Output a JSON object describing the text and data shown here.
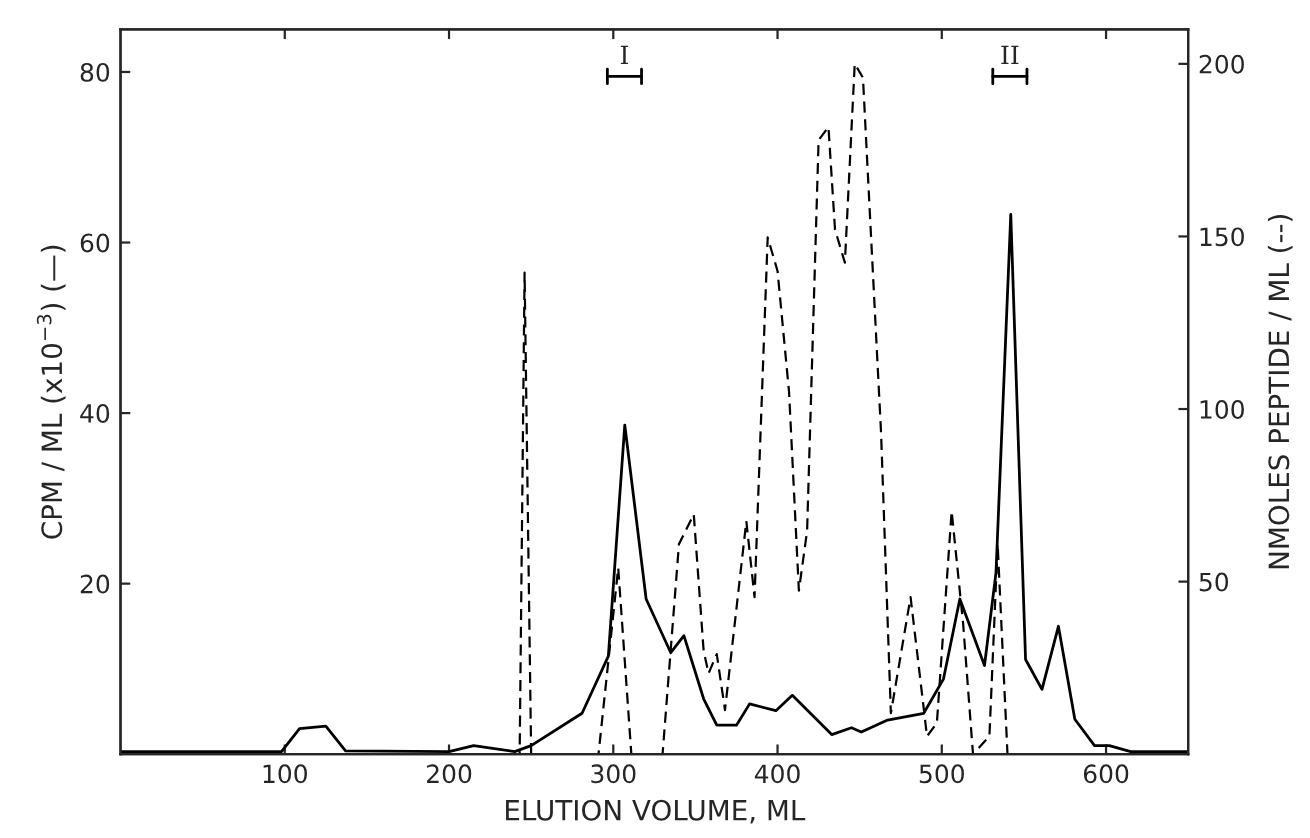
{
  "chart_data": {
    "type": "line",
    "xlabel": "ELUTION VOLUME, ML",
    "ylabel": "CPM / ML (x10$^{−3}$) (—)",
    "y2label": "NMOLES PEPTIDE / ML (--)",
    "xlim": [
      0,
      650
    ],
    "xticks": [
      100,
      200,
      300,
      400,
      500,
      600
    ],
    "ylim": [
      0,
      85
    ],
    "yticks": [
      20,
      40,
      60,
      80
    ],
    "y2lim": [
      0,
      210
    ],
    "y2ticks": [
      50,
      100,
      150,
      200
    ],
    "grid": false,
    "marker": "none",
    "series": [
      {
        "color": "#000000",
        "line_style": "solid",
        "axis": "y",
        "x": [
          0,
          98,
          109,
          125,
          137,
          200,
          215,
          240,
          250,
          281,
          297,
          307,
          320,
          335,
          343,
          355,
          363,
          375,
          383,
          399,
          409,
          433,
          445,
          451,
          467,
          489,
          501,
          511,
          517,
          526,
          533,
          542,
          551,
          561,
          571,
          581,
          593,
          602,
          615,
          650
        ],
        "values": [
          0.3,
          0.3,
          3,
          3.3,
          0.4,
          0.3,
          1,
          0.3,
          1,
          4.8,
          11.5,
          38.6,
          18.2,
          11.9,
          13.9,
          6.5,
          3.4,
          3.4,
          5.9,
          5.1,
          6.9,
          2.3,
          3.1,
          2.6,
          4,
          4.8,
          8.8,
          18.2,
          15.1,
          10.4,
          21.3,
          63.3,
          11.1,
          7.6,
          15,
          4.1,
          1,
          1,
          0.3,
          0.3
        ]
      },
      {
        "color": "#000000",
        "line_style": "dashed",
        "axis": "y2",
        "x": [
          0,
          243,
          246,
          250,
          291,
          303,
          311,
          330,
          340,
          349,
          355,
          358,
          363,
          368,
          381,
          386,
          394,
          400,
          407,
          413,
          418,
          425,
          431,
          435,
          441,
          447,
          452,
          463,
          469,
          481,
          491,
          497,
          506,
          513,
          519,
          529,
          534,
          540,
          650
        ],
        "values": [
          0,
          0,
          139.5,
          0,
          0,
          54,
          0,
          0,
          60.9,
          69.5,
          30,
          23.4,
          29,
          12.8,
          67.5,
          45.5,
          149.7,
          140,
          105,
          47.4,
          64.7,
          177.9,
          181.7,
          152,
          142.4,
          200,
          196,
          93.4,
          11.9,
          45.5,
          5.2,
          9,
          70.4,
          37.8,
          0,
          5.2,
          60.9,
          0,
          0
        ]
      }
    ],
    "annotations": [
      "I",
      "II"
    ]
  }
}
